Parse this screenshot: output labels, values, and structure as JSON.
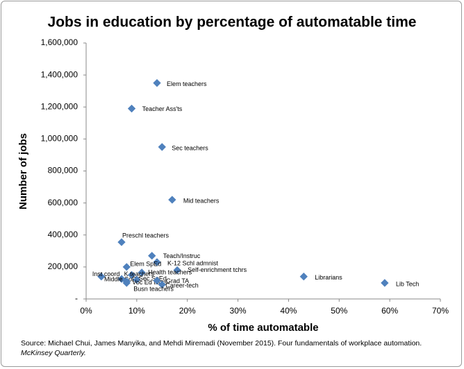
{
  "chart_data": {
    "type": "scatter",
    "title": "Jobs in education by percentage of automatable time",
    "x_label": "% of time automatable",
    "y_label": "Number of jobs",
    "source": {
      "text": "Source: Michael Chui, James Manyika, and Mehdi Miremadi (November 2015). Four fundamentals of workplace automation.",
      "journal": "McKinsey Quarterly."
    },
    "color": "#4f81bd",
    "point_labels": [
      "Elem teachers",
      "Teacher Ass'ts",
      "Sec teachers",
      "Mid teachers",
      "Preschl teachers",
      "Teach/Instruc",
      "K-12 Schl admnist",
      "Elem SpEd",
      "Self-enrichment tchrs",
      "Health teachers",
      "Inst coord",
      "K teachers",
      "Middle SpEd",
      "Sec SpEd",
      "Voc Ed tchrs",
      "Grad TA",
      "Career-tech",
      "Busn teachers",
      "Librarians",
      "Lib Tech"
    ],
    "x": [
      14,
      9,
      15,
      17,
      7,
      13,
      14,
      8,
      18,
      11,
      3,
      9,
      7,
      10,
      8,
      14,
      15,
      8,
      43,
      59
    ],
    "values": [
      1350000,
      1190000,
      950000,
      620000,
      355000,
      270000,
      230000,
      200000,
      180000,
      165000,
      140000,
      150000,
      125000,
      120000,
      110000,
      115000,
      90000,
      100000,
      140000,
      100000
    ],
    "xlim": [
      0,
      70
    ],
    "xticks": [
      {
        "value": 0,
        "label": "0%"
      },
      {
        "value": 10,
        "label": "10%"
      },
      {
        "value": 20,
        "label": "20%"
      },
      {
        "value": 30,
        "label": "30%"
      },
      {
        "value": 40,
        "label": "40%"
      },
      {
        "value": 50,
        "label": "50%"
      },
      {
        "value": 60,
        "label": "60%"
      },
      {
        "value": 70,
        "label": "70%"
      }
    ],
    "ylim": [
      0,
      1600000
    ],
    "yticks": [
      {
        "value": 0,
        "label": "-"
      },
      {
        "value": 200000,
        "label": "200,000"
      },
      {
        "value": 400000,
        "label": "400,000"
      },
      {
        "value": 600000,
        "label": "600,000"
      },
      {
        "value": 800000,
        "label": "800,000"
      },
      {
        "value": 1000000,
        "label": "1,000,000"
      },
      {
        "value": 1200000,
        "label": "1,200,000"
      },
      {
        "value": 1400000,
        "label": "1,400,000"
      },
      {
        "value": 1600000,
        "label": "1,600,000"
      }
    ]
  }
}
